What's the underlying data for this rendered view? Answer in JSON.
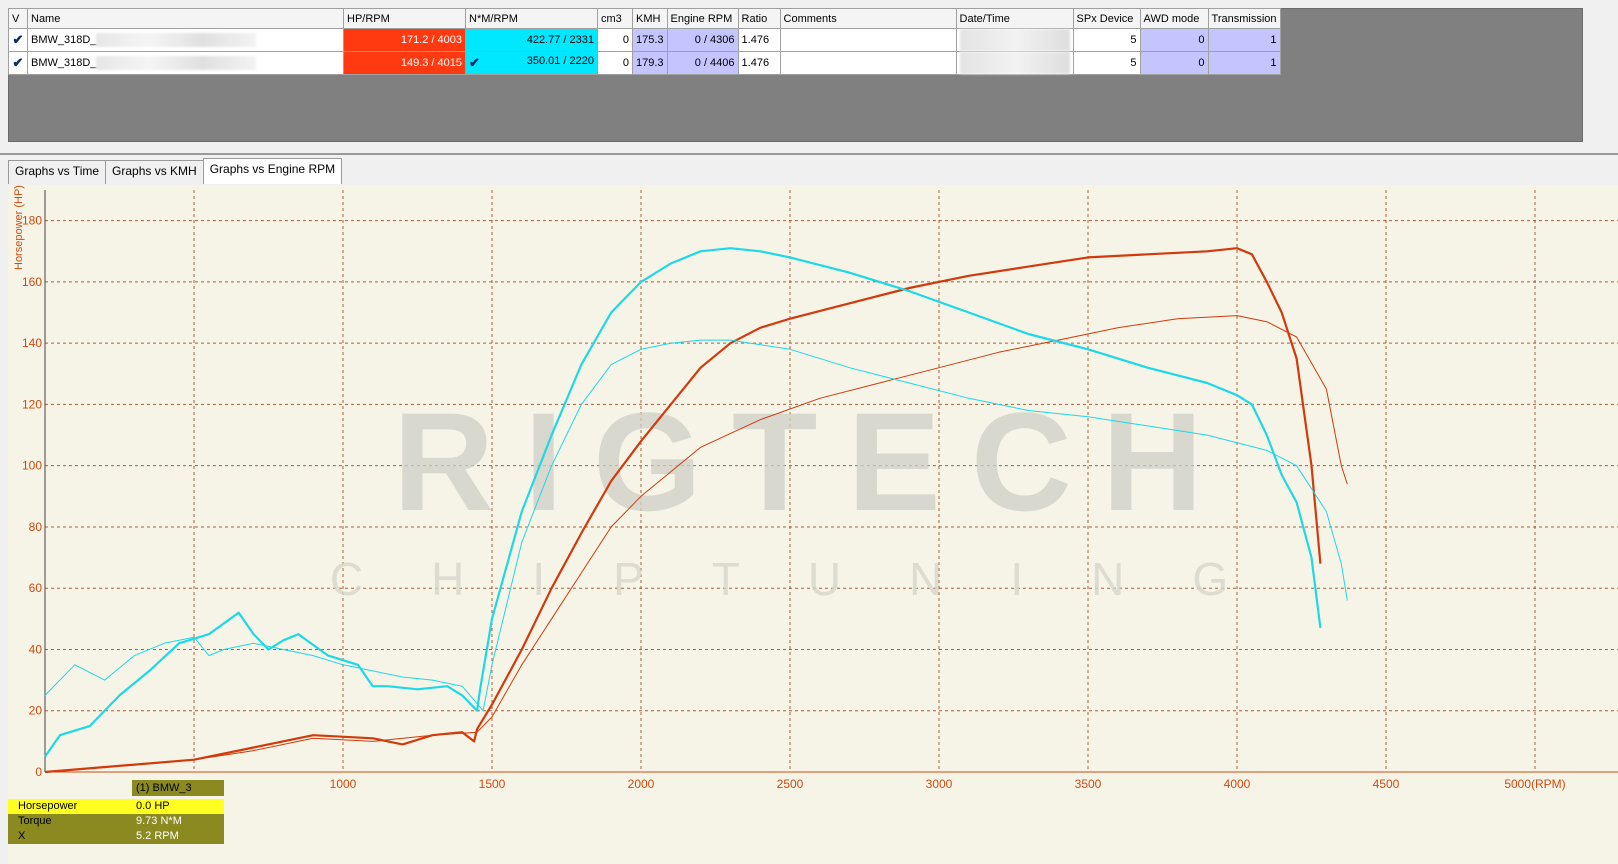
{
  "table": {
    "headers": [
      "V",
      "Name",
      "HP/RPM",
      "N*M/RPM",
      "cm3",
      "KMH",
      "Engine RPM",
      "Ratio",
      "Comments",
      "Date/Time",
      "SPx Device",
      "AWD mode",
      "Transmission"
    ],
    "rows": [
      {
        "name": "BMW_318D_",
        "hp": "171.2 / 4003",
        "torque": "422.77 / 2331",
        "cm3": "0",
        "kmh": "175.3",
        "rpm": "0 / 4306",
        "ratio": "1.476",
        "comments": "",
        "spx": "5",
        "awd": "0",
        "trans": "1"
      },
      {
        "name": "BMW_318D_",
        "hp": "149.3 / 4015",
        "torque": "350.01 / 2220",
        "cm3": "0",
        "kmh": "179.3",
        "rpm": "0 / 4406",
        "ratio": "1.476",
        "comments": "",
        "spx": "5",
        "awd": "0",
        "trans": "1"
      }
    ]
  },
  "tabs": [
    "Graphs vs Time",
    "Graphs vs KMH",
    "Graphs vs Engine RPM"
  ],
  "active_tab": "Graphs vs Engine RPM",
  "watermark": {
    "main": "RIGTECH",
    "sub": "CHIPTUNING"
  },
  "legend": {
    "title": "(1) BMW_3",
    "rows": [
      {
        "label": "Horsepower",
        "value": "0.0 HP"
      },
      {
        "label": "Torque",
        "value": "9.73 N*M"
      },
      {
        "label": "X",
        "value": "5.2 RPM"
      }
    ]
  },
  "colors": {
    "hp": "#d03a0c",
    "torque": "#1ed8e8",
    "grid": "#9a2a00",
    "bg": "#f6f4e6",
    "axis_text": "#d04a10"
  },
  "chart_data": {
    "type": "line",
    "ylabel": "Horsepower (HP)",
    "xlabel": "RPM",
    "xlim": [
      0,
      5000
    ],
    "ylim": [
      0,
      190
    ],
    "x_ticks": [
      "1000",
      "1500",
      "2000",
      "2500",
      "3000",
      "3500",
      "4000",
      "4500",
      "5000(RPM)"
    ],
    "y_ticks": [
      "0",
      "20",
      "40",
      "60",
      "80",
      "100",
      "120",
      "140",
      "160",
      "180"
    ],
    "series": [
      {
        "kind": "hp",
        "run": 1,
        "points": [
          [
            0,
            0
          ],
          [
            500,
            4
          ],
          [
            700,
            8
          ],
          [
            900,
            12
          ],
          [
            1100,
            11
          ],
          [
            1200,
            9
          ],
          [
            1300,
            12
          ],
          [
            1400,
            13
          ],
          [
            1440,
            10
          ],
          [
            1450,
            14
          ],
          [
            1500,
            22
          ],
          [
            1600,
            40
          ],
          [
            1700,
            60
          ],
          [
            1800,
            78
          ],
          [
            1900,
            95
          ],
          [
            2000,
            108
          ],
          [
            2100,
            120
          ],
          [
            2200,
            132
          ],
          [
            2300,
            140
          ],
          [
            2400,
            145
          ],
          [
            2500,
            148
          ],
          [
            2700,
            153
          ],
          [
            2900,
            158
          ],
          [
            3100,
            162
          ],
          [
            3300,
            165
          ],
          [
            3500,
            168
          ],
          [
            3700,
            169
          ],
          [
            3900,
            170
          ],
          [
            4000,
            171
          ],
          [
            4050,
            169
          ],
          [
            4100,
            160
          ],
          [
            4150,
            150
          ],
          [
            4200,
            135
          ],
          [
            4250,
            100
          ],
          [
            4280,
            68
          ]
        ]
      },
      {
        "kind": "hp",
        "run": 2,
        "points": [
          [
            0,
            0
          ],
          [
            500,
            4
          ],
          [
            700,
            7
          ],
          [
            900,
            11
          ],
          [
            1100,
            10
          ],
          [
            1300,
            12
          ],
          [
            1450,
            13
          ],
          [
            1500,
            18
          ],
          [
            1600,
            35
          ],
          [
            1700,
            50
          ],
          [
            1800,
            65
          ],
          [
            1900,
            80
          ],
          [
            2000,
            90
          ],
          [
            2100,
            98
          ],
          [
            2200,
            106
          ],
          [
            2400,
            115
          ],
          [
            2600,
            122
          ],
          [
            2800,
            127
          ],
          [
            3000,
            132
          ],
          [
            3200,
            137
          ],
          [
            3400,
            141
          ],
          [
            3600,
            145
          ],
          [
            3800,
            148
          ],
          [
            4000,
            149
          ],
          [
            4100,
            147
          ],
          [
            4200,
            142
          ],
          [
            4300,
            125
          ],
          [
            4350,
            100
          ],
          [
            4370,
            94
          ]
        ]
      },
      {
        "kind": "torque",
        "run": 1,
        "points": [
          [
            0,
            5
          ],
          [
            50,
            12
          ],
          [
            150,
            15
          ],
          [
            250,
            25
          ],
          [
            350,
            33
          ],
          [
            450,
            42
          ],
          [
            550,
            45
          ],
          [
            650,
            52
          ],
          [
            700,
            45
          ],
          [
            750,
            40
          ],
          [
            800,
            43
          ],
          [
            850,
            45
          ],
          [
            950,
            38
          ],
          [
            1050,
            35
          ],
          [
            1100,
            28
          ],
          [
            1150,
            28
          ],
          [
            1250,
            27
          ],
          [
            1350,
            28
          ],
          [
            1400,
            25
          ],
          [
            1450,
            20
          ],
          [
            1460,
            27
          ],
          [
            1500,
            50
          ],
          [
            1600,
            85
          ],
          [
            1700,
            110
          ],
          [
            1800,
            133
          ],
          [
            1900,
            150
          ],
          [
            2000,
            160
          ],
          [
            2100,
            166
          ],
          [
            2200,
            170
          ],
          [
            2300,
            171
          ],
          [
            2400,
            170
          ],
          [
            2500,
            168
          ],
          [
            2700,
            163
          ],
          [
            2900,
            157
          ],
          [
            3100,
            150
          ],
          [
            3300,
            143
          ],
          [
            3500,
            138
          ],
          [
            3700,
            132
          ],
          [
            3900,
            127
          ],
          [
            4000,
            123
          ],
          [
            4050,
            120
          ],
          [
            4100,
            110
          ],
          [
            4150,
            97
          ],
          [
            4200,
            88
          ],
          [
            4250,
            70
          ],
          [
            4280,
            47
          ]
        ]
      },
      {
        "kind": "torque",
        "run": 2,
        "points": [
          [
            0,
            25
          ],
          [
            100,
            35
          ],
          [
            200,
            30
          ],
          [
            300,
            38
          ],
          [
            400,
            42
          ],
          [
            500,
            44
          ],
          [
            550,
            38
          ],
          [
            600,
            40
          ],
          [
            700,
            42
          ],
          [
            800,
            40
          ],
          [
            900,
            38
          ],
          [
            1000,
            35
          ],
          [
            1100,
            33
          ],
          [
            1200,
            31
          ],
          [
            1300,
            30
          ],
          [
            1400,
            28
          ],
          [
            1470,
            20
          ],
          [
            1500,
            35
          ],
          [
            1600,
            75
          ],
          [
            1700,
            100
          ],
          [
            1800,
            120
          ],
          [
            1900,
            133
          ],
          [
            2000,
            138
          ],
          [
            2100,
            140
          ],
          [
            2200,
            141
          ],
          [
            2300,
            141
          ],
          [
            2500,
            138
          ],
          [
            2700,
            132
          ],
          [
            2900,
            127
          ],
          [
            3100,
            122
          ],
          [
            3300,
            118
          ],
          [
            3500,
            116
          ],
          [
            3700,
            113
          ],
          [
            3900,
            110
          ],
          [
            4100,
            105
          ],
          [
            4200,
            100
          ],
          [
            4300,
            85
          ],
          [
            4350,
            68
          ],
          [
            4370,
            56
          ]
        ]
      }
    ]
  }
}
